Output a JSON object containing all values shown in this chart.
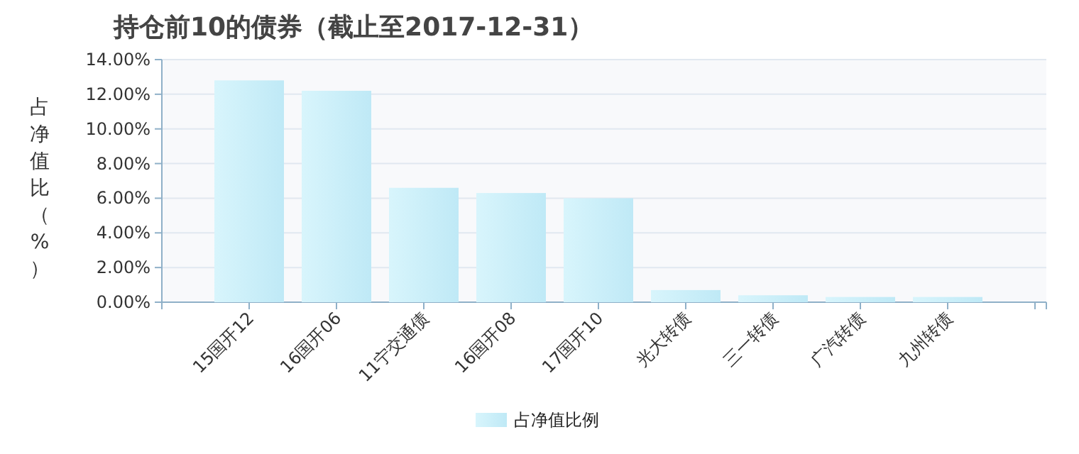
{
  "chart_data": {
    "type": "bar",
    "title": "持仓前10的债券（截止至2017-12-31）",
    "ylabel": "占净值比（%）",
    "categories": [
      "15国开12",
      "16国开06",
      "11宁交通债",
      "16国开08",
      "17国开10",
      "光大转债",
      "三一转债",
      "广汽转债",
      "九州转债"
    ],
    "series": [
      {
        "name": "占净值比例",
        "color": "#bfe9f6",
        "values": [
          12.8,
          12.2,
          6.6,
          6.3,
          6.0,
          0.7,
          0.4,
          0.3,
          0.3
        ]
      }
    ],
    "ylim": [
      0,
      14
    ],
    "yticks": [
      {
        "value": 0,
        "label": "0.00%"
      },
      {
        "value": 2,
        "label": "2.00%"
      },
      {
        "value": 4,
        "label": "4.00%"
      },
      {
        "value": 6,
        "label": "6.00%"
      },
      {
        "value": 8,
        "label": "8.00%"
      },
      {
        "value": 10,
        "label": "10.00%"
      },
      {
        "value": 12,
        "label": "12.00%"
      },
      {
        "value": 14,
        "label": "14.00%"
      }
    ],
    "grid": "y",
    "legend": "bottom"
  }
}
